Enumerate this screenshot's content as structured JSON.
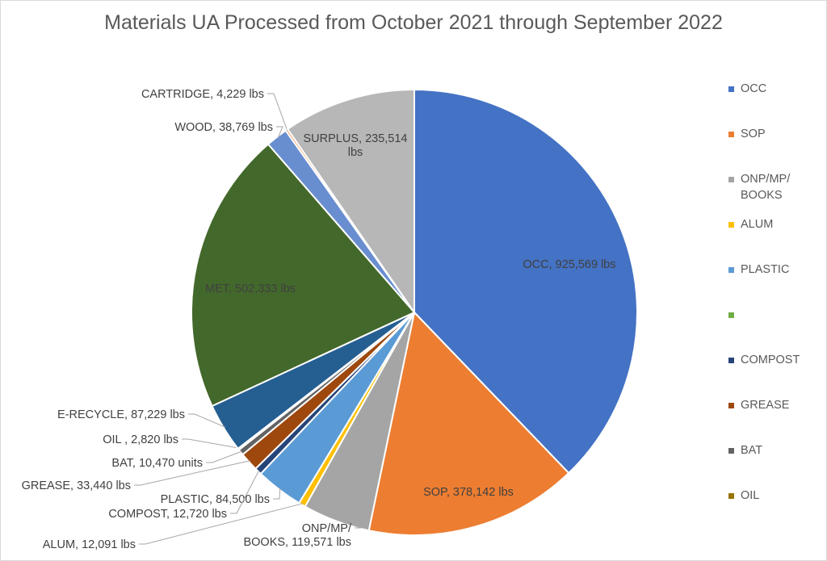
{
  "chart_data": {
    "type": "pie",
    "title": "Materials UA Processed from October 2021 through September 2022",
    "slices": [
      {
        "name": "OCC",
        "value": 925569,
        "label": "OCC, 925,569 lbs",
        "color": "#4472C4"
      },
      {
        "name": "SOP",
        "value": 378142,
        "label": "SOP, 378,142 lbs",
        "color": "#ED7D31"
      },
      {
        "name": "ONP/MP/BOOKS",
        "value": 119571,
        "label": "ONP/MP/\nBOOKS, 119,571 lbs",
        "color": "#A5A5A5"
      },
      {
        "name": "ALUM",
        "value": 12091,
        "label": "ALUM, 12,091 lbs",
        "color": "#FFC000"
      },
      {
        "name": "PLASTIC",
        "value": 84500,
        "label": "PLASTIC, 84,500 lbs",
        "color": "#5B9BD5"
      },
      {
        "name": "COMPOST",
        "value": 12720,
        "label": "COMPOST, 12,720 lbs",
        "color": "#264478"
      },
      {
        "name": "GREASE",
        "value": 33440,
        "label": "GREASE, 33,440 lbs",
        "color": "#9E480E"
      },
      {
        "name": "BAT",
        "value": 10470,
        "label": "BAT, 10,470 units",
        "color": "#636363"
      },
      {
        "name": "OIL",
        "value": 2820,
        "label": "OIL , 2,820 lbs",
        "color": "#997300"
      },
      {
        "name": "E-RECYCLE",
        "value": 87229,
        "label": "E-RECYCLE, 87,229 lbs",
        "color": "#255E91"
      },
      {
        "name": "MET",
        "value": 502333,
        "label": "MET, 502,333 lbs",
        "color": "#43682B"
      },
      {
        "name": "WOOD",
        "value": 38769,
        "label": "WOOD, 38,769 lbs",
        "color": "#698ED0"
      },
      {
        "name": "CARTRIDGE",
        "value": 4229,
        "label": "CARTRIDGE, 4,229 lbs",
        "color": "#F1975A"
      },
      {
        "name": "SURPLUS",
        "value": 235514,
        "label": "SURPLUS, 235,514\nlbs",
        "color": "#B7B7B7"
      }
    ],
    "legend": {
      "position": "right",
      "entries": [
        {
          "label": "OCC",
          "color": "#4472C4"
        },
        {
          "label": "SOP",
          "color": "#ED7D31"
        },
        {
          "label": "ONP/MP/\nBOOKS",
          "color": "#A5A5A5"
        },
        {
          "label": "ALUM",
          "color": "#FFC000"
        },
        {
          "label": "PLASTIC",
          "color": "#5B9BD5"
        },
        {
          "label": "",
          "color": "#70AD47"
        },
        {
          "label": "COMPOST",
          "color": "#264478"
        },
        {
          "label": "GREASE",
          "color": "#9E480E"
        },
        {
          "label": "BAT",
          "color": "#636363"
        },
        {
          "label": "OIL",
          "color": "#997300"
        }
      ]
    }
  }
}
